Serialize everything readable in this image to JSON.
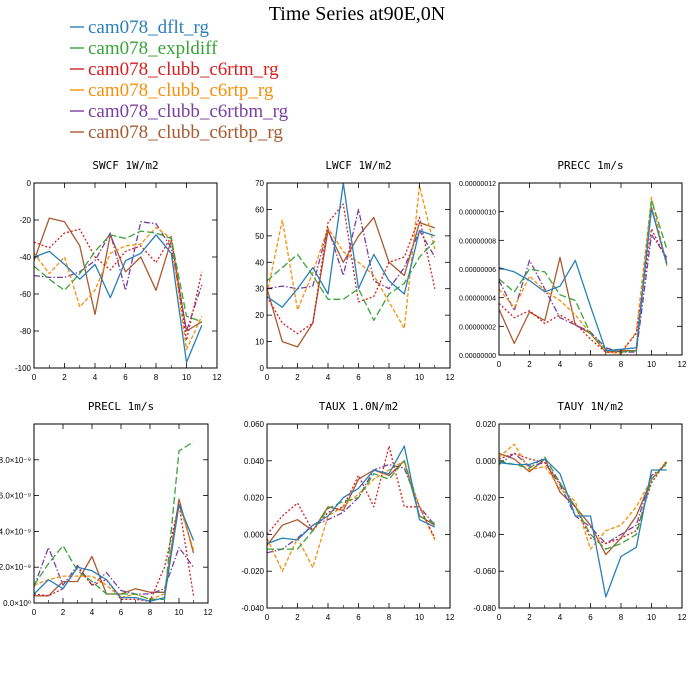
{
  "figure_title": "Time Series at90E,0N",
  "colors": {
    "cam078_dflt_rg": "#2a7fb8",
    "cam078_expldiff": "#3aa33a",
    "cam078_clubb_c6rtm_rg": "#d62020",
    "cam078_clubb_c6rtp_rg": "#f5900c",
    "cam078_clubb_c6rtbm_rg": "#7a3fa0",
    "cam078_clubb_c6rtbp_rg": "#a85a30"
  },
  "legend": [
    {
      "name": "cam078_dflt_rg",
      "dash": "solid"
    },
    {
      "name": "cam078_expldiff",
      "dash": "longdash"
    },
    {
      "name": "cam078_clubb_c6rtm_rg",
      "dash": "dot"
    },
    {
      "name": "cam078_clubb_c6rtp_rg",
      "dash": "dash"
    },
    {
      "name": "cam078_clubb_c6rtbm_rg",
      "dash": "dashdot"
    },
    {
      "name": "cam078_clubb_c6rtbp_rg",
      "dash": "solid"
    }
  ],
  "chart_data": [
    {
      "type": "line",
      "title": "SWCF   1W/m2",
      "xlim": [
        0,
        12
      ],
      "ylim": [
        -100,
        0
      ],
      "xticks": [
        0,
        2,
        4,
        6,
        8,
        10,
        12
      ],
      "yticks": [
        -100,
        -80,
        -60,
        -40,
        -20,
        0
      ],
      "ytick_labels": [
        "-100",
        "-80",
        "-60",
        "-40",
        "-20",
        "0"
      ],
      "x": [
        0,
        1,
        2,
        3,
        4,
        5,
        6,
        7,
        8,
        9,
        10,
        11
      ],
      "series": [
        {
          "name": "cam078_dflt_rg",
          "values": [
            -40,
            -37,
            -44,
            -52,
            -44,
            -62,
            -42,
            -38,
            -28,
            -38,
            -97,
            -77
          ]
        },
        {
          "name": "cam078_expldiff",
          "values": [
            -45,
            -52,
            -58,
            -49,
            -37,
            -28,
            -30,
            -26,
            -27,
            -30,
            -72,
            -75
          ]
        },
        {
          "name": "cam078_clubb_c6rtm_rg",
          "values": [
            -32,
            -35,
            -27,
            -25,
            -40,
            -47,
            -37,
            -34,
            -43,
            -29,
            -85,
            -48
          ]
        },
        {
          "name": "cam078_clubb_c6rtp_rg",
          "values": [
            -38,
            -49,
            -40,
            -67,
            -58,
            -38,
            -34,
            -33,
            -24,
            -30,
            -90,
            -72
          ]
        },
        {
          "name": "cam078_clubb_c6rtbm_rg",
          "values": [
            -50,
            -51,
            -51,
            -48,
            -42,
            -27,
            -58,
            -21,
            -22,
            -35,
            -80,
            -55
          ]
        },
        {
          "name": "cam078_clubb_c6rtbp_rg",
          "values": [
            -42,
            -19,
            -21,
            -34,
            -71,
            -28,
            -48,
            -40,
            -58,
            -31,
            -80,
            -75
          ]
        }
      ]
    },
    {
      "type": "line",
      "title": "LWCF   1W/m2",
      "xlim": [
        0,
        12
      ],
      "ylim": [
        0,
        70
      ],
      "xticks": [
        0,
        2,
        4,
        6,
        8,
        10,
        12
      ],
      "yticks": [
        0,
        10,
        20,
        30,
        40,
        50,
        60,
        70
      ],
      "ytick_labels": [
        "0",
        "10",
        "20",
        "30",
        "40",
        "50",
        "60",
        "70"
      ],
      "x": [
        0,
        1,
        2,
        3,
        4,
        5,
        6,
        7,
        8,
        9,
        10,
        11
      ],
      "series": [
        {
          "name": "cam078_dflt_rg",
          "values": [
            27,
            23,
            30,
            38,
            28,
            70,
            30,
            43,
            33,
            28,
            52,
            50
          ]
        },
        {
          "name": "cam078_expldiff",
          "values": [
            33,
            38,
            43,
            35,
            26,
            26,
            30,
            18,
            28,
            32,
            42,
            48
          ]
        },
        {
          "name": "cam078_clubb_c6rtm_rg",
          "values": [
            27,
            17,
            13,
            17,
            55,
            62,
            25,
            27,
            40,
            42,
            57,
            30
          ]
        },
        {
          "name": "cam078_clubb_c6rtp_rg",
          "values": [
            28,
            56,
            22,
            36,
            53,
            44,
            40,
            35,
            25,
            15,
            69,
            45
          ]
        },
        {
          "name": "cam078_clubb_c6rtbm_rg",
          "values": [
            30,
            31,
            30,
            31,
            53,
            35,
            60,
            33,
            30,
            38,
            52,
            42
          ]
        },
        {
          "name": "cam078_clubb_c6rtbp_rg",
          "values": [
            30,
            10,
            8,
            17,
            52,
            40,
            50,
            57,
            40,
            35,
            55,
            53
          ]
        }
      ]
    },
    {
      "type": "line",
      "title": "PRECC   1m/s",
      "xlim": [
        0,
        12
      ],
      "ylim": [
        0,
        1.2e-07
      ],
      "xticks": [
        0,
        2,
        4,
        6,
        8,
        10,
        12
      ],
      "yticks": [
        0,
        2e-08,
        4e-08,
        6e-08,
        8e-08,
        1e-07,
        1.2e-07
      ],
      "ytick_labels": [
        "0.00000000",
        "0.00000002",
        "0.00000004",
        "0.00000006",
        "0.00000008",
        "0.00000010",
        "0.00000012"
      ],
      "x": [
        0,
        1,
        2,
        3,
        4,
        5,
        6,
        7,
        8,
        9,
        10,
        11
      ],
      "series": [
        {
          "name": "cam078_dflt_rg",
          "values": [
            6.1e-08,
            5.8e-08,
            5.2e-08,
            4.4e-08,
            4.8e-08,
            6.6e-08,
            3.4e-08,
            3e-09,
            4e-09,
            5e-09,
            1.02e-07,
            6.4e-08
          ]
        },
        {
          "name": "cam078_expldiff",
          "values": [
            5.3e-08,
            4.4e-08,
            6e-08,
            5.8e-08,
            4.2e-08,
            3.8e-08,
            1.5e-08,
            4e-09,
            2e-09,
            3e-09,
            1.08e-07,
            7.4e-08
          ]
        },
        {
          "name": "cam078_clubb_c6rtm_rg",
          "values": [
            3.6e-08,
            2.6e-08,
            3.1e-08,
            2.2e-08,
            2.8e-08,
            2.2e-08,
            1.1e-08,
            2e-09,
            2e-09,
            1.5e-08,
            8.8e-08,
            6.6e-08
          ]
        },
        {
          "name": "cam078_clubb_c6rtp_rg",
          "values": [
            4.6e-08,
            3.3e-08,
            5.5e-08,
            4.5e-08,
            3.8e-08,
            2.8e-08,
            1.5e-08,
            2e-09,
            1e-09,
            1.6e-08,
            1.1e-07,
            6.2e-08
          ]
        },
        {
          "name": "cam078_clubb_c6rtbm_rg",
          "values": [
            5.2e-08,
            3.1e-08,
            6.6e-08,
            4.6e-08,
            2.6e-08,
            2.1e-08,
            1.6e-08,
            5e-09,
            2e-09,
            2e-09,
            8.4e-08,
            6.8e-08
          ]
        },
        {
          "name": "cam078_clubb_c6rtbp_rg",
          "values": [
            3.2e-08,
            8e-09,
            3e-08,
            2.4e-08,
            6.8e-08,
            2.1e-08,
            1.5e-08,
            2e-09,
            3e-09,
            3e-09,
            1.03e-07,
            6.3e-08
          ]
        }
      ]
    },
    {
      "type": "line",
      "title": "PRECL   1m/s",
      "xlim": [
        0,
        12
      ],
      "ylim": [
        0,
        1e-08
      ],
      "xticks": [
        0,
        2,
        4,
        6,
        8,
        10,
        12
      ],
      "yticks": [
        0,
        2e-09,
        4e-09,
        6e-09,
        8e-09
      ],
      "ytick_labels": [
        "0.0×10⁰",
        "2.0×10⁻⁹",
        "4.0×10⁻⁹",
        "6.0×10⁻⁹",
        "8.0×10⁻⁹"
      ],
      "x": [
        0,
        1,
        2,
        3,
        4,
        5,
        6,
        7,
        8,
        9,
        10,
        11
      ],
      "series": [
        {
          "name": "cam078_dflt_rg",
          "values": [
            5e-10,
            1.3e-09,
            8e-10,
            2e-09,
            1.8e-09,
            1.3e-09,
            3e-10,
            3e-10,
            1e-10,
            3e-10,
            5.5e-09,
            3.5e-09
          ]
        },
        {
          "name": "cam078_expldiff",
          "values": [
            1e-09,
            2.2e-09,
            3.2e-09,
            1.8e-09,
            1.2e-09,
            5e-10,
            5e-10,
            5e-10,
            2e-10,
            2e-10,
            8.5e-09,
            9e-09
          ]
        },
        {
          "name": "cam078_clubb_c6rtm_rg",
          "values": [
            5e-10,
            4e-10,
            8e-10,
            2e-09,
            1e-09,
            1.3e-09,
            2e-10,
            2e-10,
            1e-10,
            2e-09,
            5.5e-09,
            4e-10
          ]
        },
        {
          "name": "cam078_clubb_c6rtp_rg",
          "values": [
            1e-09,
            1.3e-09,
            1.5e-09,
            1.5e-09,
            1.5e-09,
            1e-09,
            3e-10,
            5e-10,
            2e-10,
            5e-10,
            5.5e-09,
            3e-09
          ]
        },
        {
          "name": "cam078_clubb_c6rtbm_rg",
          "values": [
            9e-10,
            3.1e-09,
            1e-09,
            2.1e-09,
            1e-09,
            1.7e-09,
            7e-10,
            5e-10,
            5e-10,
            8e-10,
            3.1e-09,
            2e-09
          ]
        },
        {
          "name": "cam078_clubb_c6rtbp_rg",
          "values": [
            4e-10,
            4e-10,
            1.2e-09,
            1.2e-09,
            2.6e-09,
            5e-10,
            5e-10,
            8e-10,
            6e-10,
            6e-10,
            5.8e-09,
            2.8e-09
          ]
        }
      ]
    },
    {
      "type": "line",
      "title": "TAUX   1.0N/m2",
      "xlim": [
        0,
        12
      ],
      "ylim": [
        -0.04,
        0.06
      ],
      "xticks": [
        0,
        2,
        4,
        6,
        8,
        10,
        12
      ],
      "yticks": [
        -0.04,
        -0.02,
        0,
        0.02,
        0.04,
        0.06
      ],
      "ytick_labels": [
        "-0.040",
        "-0.020",
        "0.000",
        "0.020",
        "0.040",
        "0.060"
      ],
      "x": [
        0,
        1,
        2,
        3,
        4,
        5,
        6,
        7,
        8,
        9,
        10,
        11
      ],
      "series": [
        {
          "name": "cam078_dflt_rg",
          "values": [
            -0.005,
            -0.002,
            -0.003,
            0.005,
            0.01,
            0.02,
            0.025,
            0.035,
            0.033,
            0.048,
            0.008,
            0.004
          ]
        },
        {
          "name": "cam078_expldiff",
          "values": [
            -0.008,
            -0.008,
            -0.008,
            0.002,
            0.014,
            0.018,
            0.02,
            0.033,
            0.03,
            0.04,
            0.01,
            0.006
          ]
        },
        {
          "name": "cam078_clubb_c6rtm_rg",
          "values": [
            0,
            0.01,
            0.017,
            0.002,
            0.012,
            0.015,
            0.032,
            0.015,
            0.048,
            0.015,
            0.015,
            -0.002
          ]
        },
        {
          "name": "cam078_clubb_c6rtp_rg",
          "values": [
            -0.002,
            -0.02,
            -0.002,
            -0.018,
            0.01,
            0.015,
            0.022,
            0.03,
            0.035,
            0.04,
            0.015,
            -0.003
          ]
        },
        {
          "name": "cam078_clubb_c6rtbm_rg",
          "values": [
            -0.01,
            -0.008,
            -0.002,
            0.005,
            0.008,
            0.012,
            0.02,
            0.035,
            0.038,
            0.036,
            0.015,
            0.005
          ]
        },
        {
          "name": "cam078_clubb_c6rtbp_rg",
          "values": [
            -0.006,
            0.005,
            0.008,
            0.002,
            0.015,
            0.013,
            0.03,
            0.035,
            0.032,
            0.04,
            0.01,
            0.005
          ]
        }
      ]
    },
    {
      "type": "line",
      "title": "TAUY   1N/m2",
      "xlim": [
        0,
        12
      ],
      "ylim": [
        -0.08,
        0.02
      ],
      "xticks": [
        0,
        2,
        4,
        6,
        8,
        10,
        12
      ],
      "yticks": [
        -0.08,
        -0.06,
        -0.04,
        -0.02,
        0,
        0.02
      ],
      "ytick_labels": [
        "-0.080",
        "-0.060",
        "-0.040",
        "-0.020",
        "0.000",
        "0.020"
      ],
      "x": [
        0,
        1,
        2,
        3,
        4,
        5,
        6,
        7,
        8,
        9,
        10,
        11
      ],
      "series": [
        {
          "name": "cam078_dflt_rg",
          "values": [
            -0.001,
            -0.002,
            -0.002,
            0.001,
            -0.007,
            -0.03,
            -0.03,
            -0.074,
            -0.052,
            -0.047,
            -0.005,
            -0.005
          ]
        },
        {
          "name": "cam078_expldiff",
          "values": [
            0,
            -0.002,
            -0.004,
            0.002,
            -0.012,
            -0.025,
            -0.04,
            -0.048,
            -0.045,
            -0.04,
            -0.01,
            -0.001
          ]
        },
        {
          "name": "cam078_clubb_c6rtm_rg",
          "values": [
            0.001,
            0.004,
            0.001,
            -0.001,
            -0.012,
            -0.025,
            -0.042,
            -0.045,
            -0.042,
            -0.038,
            -0.012,
            0
          ]
        },
        {
          "name": "cam078_clubb_c6rtp_rg",
          "values": [
            0.002,
            0.009,
            -0.005,
            -0.003,
            -0.015,
            -0.022,
            -0.048,
            -0.038,
            -0.035,
            -0.025,
            -0.01,
            0
          ]
        },
        {
          "name": "cam078_clubb_c6rtbm_rg",
          "values": [
            -0.002,
            0.004,
            -0.003,
            -0.001,
            -0.013,
            -0.03,
            -0.036,
            -0.045,
            -0.04,
            -0.035,
            -0.008,
            -0.002
          ]
        },
        {
          "name": "cam078_clubb_c6rtbp_rg",
          "values": [
            0.004,
            0.001,
            -0.006,
            0.001,
            -0.017,
            -0.025,
            -0.035,
            -0.051,
            -0.042,
            -0.03,
            -0.01,
            -0.001
          ]
        }
      ]
    }
  ]
}
